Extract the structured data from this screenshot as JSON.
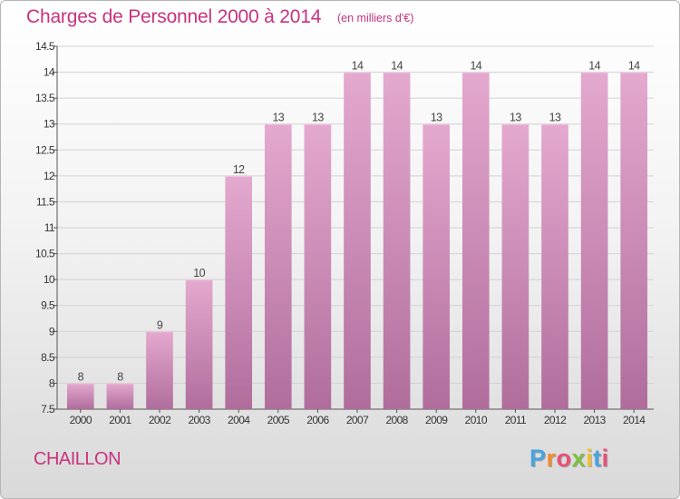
{
  "title": "Charges de Personnel 2000 à 2014",
  "subtitle": "(en milliers d'€)",
  "commune": "CHAILLON",
  "brand": {
    "letters": [
      "P",
      "r",
      "o",
      "x",
      "i",
      "t",
      "i"
    ],
    "colors": [
      "#4aa3df",
      "#f28c28",
      "#e94e77",
      "#7fbf3f",
      "#f2c12e",
      "#4aa3df",
      "#e94e77"
    ]
  },
  "colors": {
    "accent": "#c8327e",
    "bar_top": "#e4a9cf",
    "bar_bottom": "#b06d9c"
  },
  "chart_data": {
    "type": "bar",
    "title": "Charges de Personnel 2000 à 2014",
    "ylabel": "",
    "xlabel": "",
    "categories": [
      "2000",
      "2001",
      "2002",
      "2003",
      "2004",
      "2005",
      "2006",
      "2007",
      "2008",
      "2009",
      "2010",
      "2011",
      "2012",
      "2013",
      "2014"
    ],
    "values": [
      8,
      8,
      9,
      10,
      12,
      13,
      13,
      14,
      14,
      13,
      14,
      13,
      13,
      14,
      14
    ],
    "ylim": [
      7.5,
      14.5
    ],
    "yticks": [
      "7.5",
      "8",
      "8.5",
      "9",
      "9.5",
      "10",
      "10.5",
      "11",
      "11.5",
      "12",
      "12.5",
      "13",
      "13.5",
      "14",
      "14.5"
    ],
    "grid": true
  }
}
